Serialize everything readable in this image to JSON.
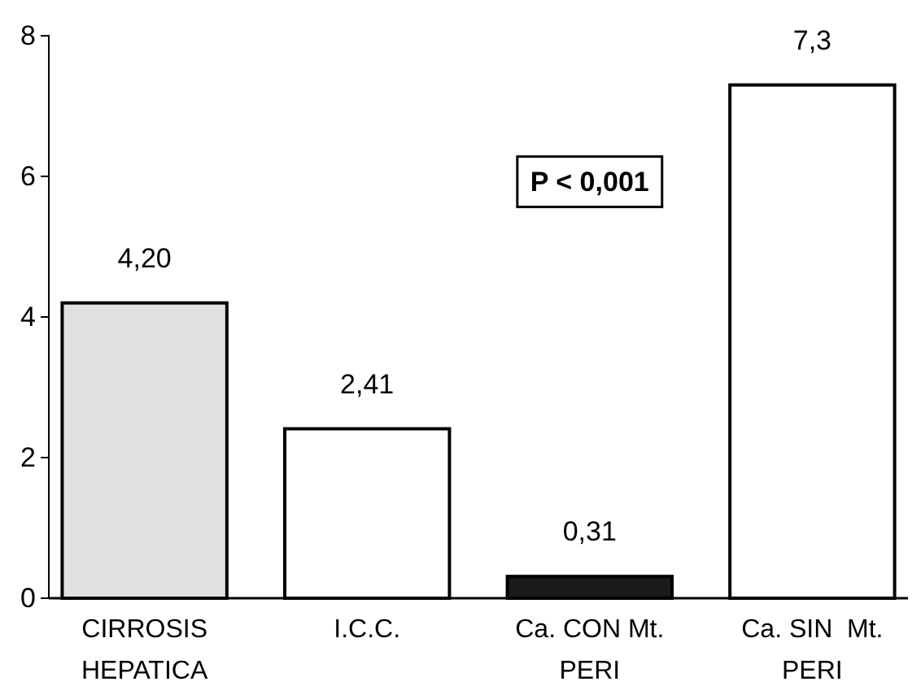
{
  "chart_data": {
    "type": "bar",
    "categories": [
      "CIRROSIS\nHEPATICA",
      "I.C.C.",
      "Ca. CON Mt.\nPERI",
      "Ca. SIN  Mt.\nPERI"
    ],
    "values": [
      4.2,
      2.41,
      0.31,
      7.3
    ],
    "colors": [
      "#e0e0e0",
      "#ffffff",
      "#1a1a1a",
      "#ffffff"
    ],
    "value_labels": [
      "4,20",
      "2,41",
      "0,31",
      "7,3"
    ],
    "ylim": [
      0,
      8
    ],
    "yticks": [
      0,
      2,
      4,
      6,
      8
    ],
    "grid": false,
    "annotations": [
      "P < 0,001"
    ]
  }
}
